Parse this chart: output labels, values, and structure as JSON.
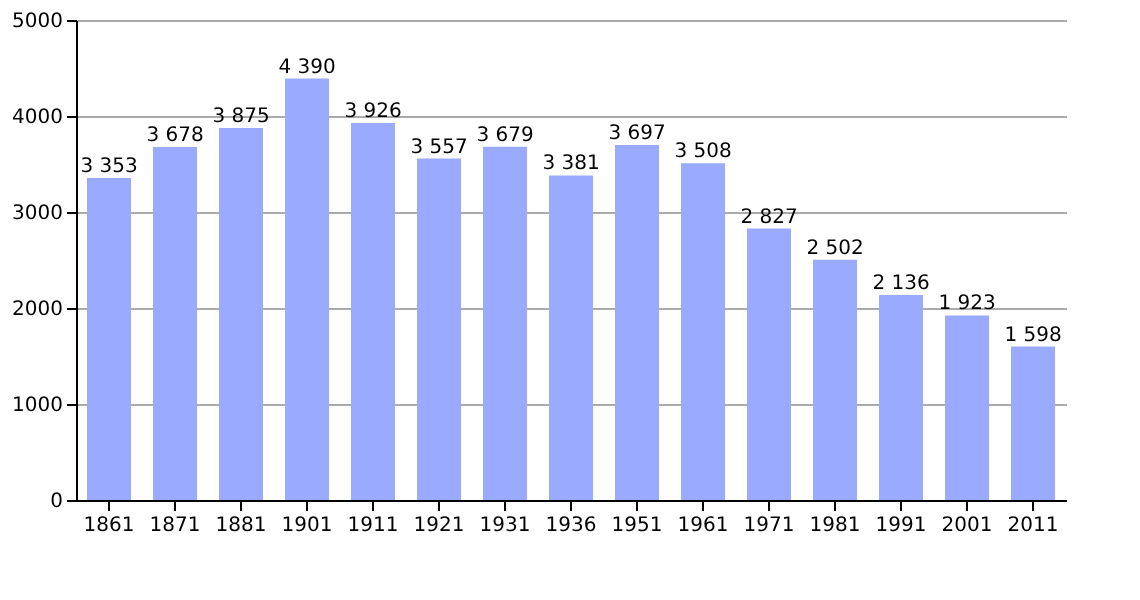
{
  "chart_data": {
    "type": "bar",
    "categories": [
      "1861",
      "1871",
      "1881",
      "1901",
      "1911",
      "1921",
      "1931",
      "1936",
      "1951",
      "1961",
      "1971",
      "1981",
      "1991",
      "2001",
      "2011"
    ],
    "values": [
      3353,
      3678,
      3875,
      4390,
      3926,
      3557,
      3679,
      3381,
      3697,
      3508,
      2827,
      2502,
      2136,
      1923,
      1598
    ],
    "value_labels": [
      "3 353",
      "3 678",
      "3 875",
      "4 390",
      "3 926",
      "3 557",
      "3 679",
      "3 381",
      "3 697",
      "3 508",
      "2 827",
      "2 502",
      "2 136",
      "1 923",
      "1 598"
    ],
    "color": "#99aaff",
    "ylim": [
      0,
      5000
    ],
    "yticks": [
      0,
      1000,
      2000,
      3000,
      4000,
      5000
    ],
    "grid": "y"
  }
}
